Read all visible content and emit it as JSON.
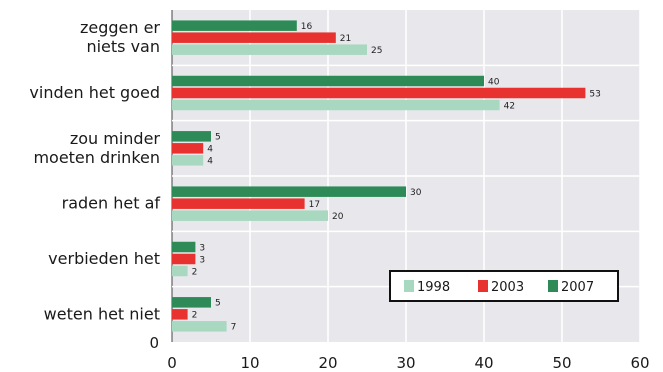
{
  "chart_data": {
    "type": "bar",
    "orientation": "horizontal",
    "categories": [
      [
        "zeggen er",
        "niets van"
      ],
      [
        "vinden het goed"
      ],
      [
        "zou minder",
        "moeten drinken"
      ],
      [
        "raden het af"
      ],
      [
        "verbieden het"
      ],
      [
        "weten het niet"
      ]
    ],
    "series": [
      {
        "name": "2007",
        "color": "#2e8b57",
        "values": [
          16,
          40,
          5,
          30,
          3,
          5
        ]
      },
      {
        "name": "2003",
        "color": "#e8322f",
        "values": [
          21,
          53,
          4,
          17,
          3,
          2
        ]
      },
      {
        "name": "1998",
        "color": "#a8d8c0",
        "values": [
          25,
          42,
          4,
          20,
          2,
          7
        ]
      }
    ],
    "legend_order": [
      "1998",
      "2003",
      "2007"
    ],
    "legend_position": "bottom-right",
    "xlim": [
      0,
      60
    ],
    "xticks": [
      0,
      10,
      20,
      30,
      40,
      50,
      60
    ],
    "y_origin_label": "0",
    "grid": true,
    "plot_background": "#e8e8ec",
    "title": "",
    "xlabel": "",
    "ylabel": ""
  }
}
